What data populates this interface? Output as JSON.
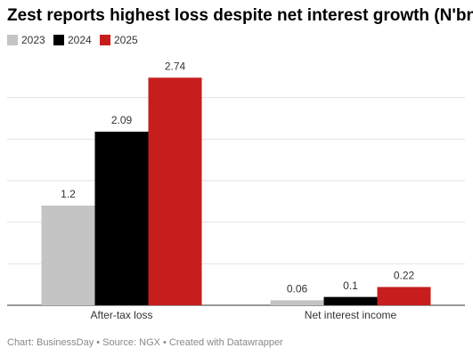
{
  "chart_data": {
    "type": "bar",
    "title": "Zest reports highest loss despite net interest growth (N'bn)",
    "categories": [
      "After-tax loss",
      "Net interest income"
    ],
    "series": [
      {
        "name": "2023",
        "color": "#c4c4c4",
        "values": [
          1.2,
          0.06
        ]
      },
      {
        "name": "2024",
        "color": "#000000",
        "values": [
          2.09,
          0.1
        ]
      },
      {
        "name": "2025",
        "color": "#c71e1d",
        "values": [
          2.74,
          0.22
        ]
      }
    ],
    "ylim": [
      0,
      3
    ],
    "yticks": [
      0,
      0.5,
      1,
      1.5,
      2,
      2.5
    ],
    "grid": true,
    "source": "Chart: BusinessDay • Source: NGX • Created with Datawrapper"
  }
}
